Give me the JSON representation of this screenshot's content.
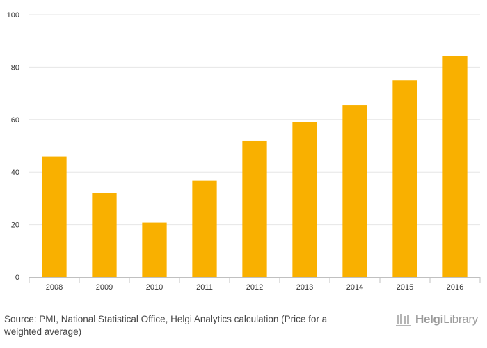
{
  "chart_data": {
    "type": "bar",
    "categories": [
      "2008",
      "2009",
      "2010",
      "2011",
      "2012",
      "2013",
      "2014",
      "2015",
      "2016"
    ],
    "values": [
      46,
      32,
      20.8,
      36.7,
      52,
      59,
      65.5,
      75,
      84.3
    ],
    "ylim": [
      0,
      100
    ],
    "yticks": [
      0,
      20,
      40,
      60,
      80,
      100
    ],
    "grid": true,
    "bar_color": "#F9B000"
  },
  "footer": {
    "source": "Source: PMI, National Statistical Office, Helgi Analytics calculation (Price for a weighted average)",
    "logo": {
      "part1": "Helgi",
      "part2": "Library"
    }
  }
}
